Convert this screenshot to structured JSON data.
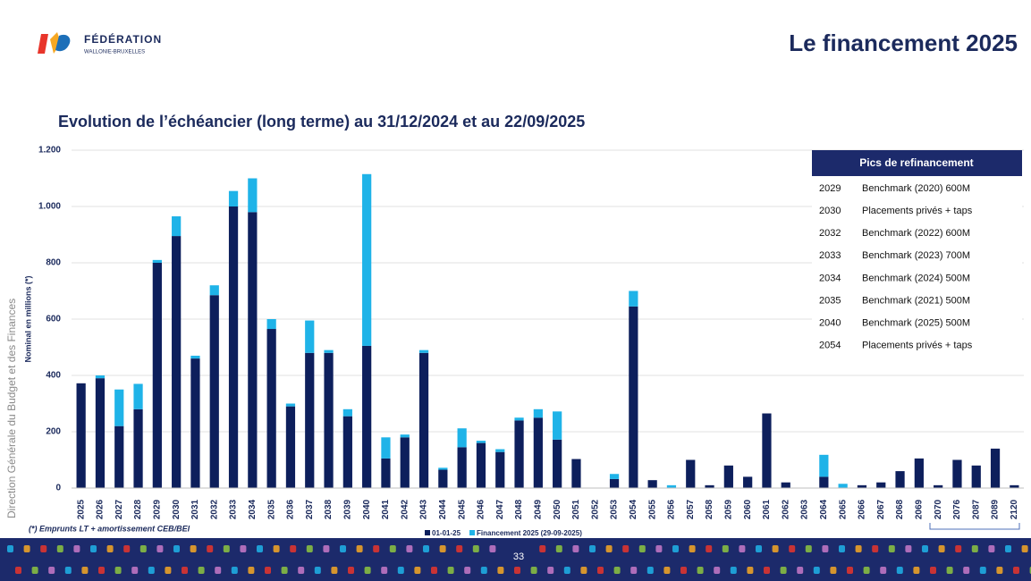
{
  "header": {
    "logo_line1": "FÉDÉRATION",
    "logo_line2": "WALLONIE-BRUXELLES",
    "title": "Le financement 2025"
  },
  "side_text": "Direction Générale du Budget et des Finances",
  "chart_data": {
    "type": "bar",
    "stacked": true,
    "title": "Evolution de l’échéancier (long terme) au 31/12/2024 et au 22/09/2025",
    "y_label": "Nominal en millions (*)",
    "categories": [
      "2025",
      "2026",
      "2027",
      "2028",
      "2029",
      "2030",
      "2031",
      "2032",
      "2033",
      "2034",
      "2035",
      "2036",
      "2037",
      "2038",
      "2039",
      "2040",
      "2041",
      "2042",
      "2043",
      "2044",
      "2045",
      "2046",
      "2047",
      "2048",
      "2049",
      "2050",
      "2051",
      "2052",
      "2053",
      "2054",
      "2055",
      "2056",
      "2057",
      "2058",
      "2059",
      "2060",
      "2061",
      "2062",
      "2063",
      "2064",
      "2065",
      "2066",
      "2067",
      "2068",
      "2069",
      "2070",
      "2076",
      "2087",
      "2089",
      "2120"
    ],
    "series": [
      {
        "name": "01-01-25",
        "color": "#0d1f5c",
        "values": [
          372,
          390,
          220,
          280,
          800,
          895,
          460,
          685,
          1000,
          980,
          565,
          290,
          480,
          480,
          255,
          505,
          105,
          180,
          480,
          65,
          145,
          160,
          128,
          240,
          250,
          172,
          103,
          0,
          32,
          645,
          28,
          0,
          100,
          10,
          80,
          40,
          265,
          20,
          0,
          40,
          0,
          10,
          20,
          60,
          105,
          10,
          100,
          80,
          140,
          10
        ]
      },
      {
        "name": "Financement 2025 (29-09-2025)",
        "color": "#1fb3e8",
        "values": [
          0,
          10,
          130,
          90,
          10,
          70,
          10,
          35,
          55,
          120,
          35,
          10,
          115,
          10,
          25,
          610,
          75,
          10,
          10,
          7,
          67,
          8,
          10,
          10,
          30,
          100,
          0,
          0,
          18,
          55,
          0,
          10,
          0,
          0,
          0,
          0,
          0,
          0,
          0,
          78,
          15,
          0,
          0,
          0,
          0,
          0,
          0,
          0,
          0,
          0
        ]
      }
    ],
    "ylim": [
      0,
      1200
    ],
    "yticks": [
      0,
      200,
      400,
      600,
      800,
      {
        "value": 1000,
        "label": "1.000"
      },
      {
        "value": 1200,
        "label": "1.200"
      }
    ],
    "grid": true,
    "footnote": "(*) Emprunts LT +  amortissement CEB/BEI"
  },
  "table": {
    "header": "Pics de refinancement",
    "rows": [
      [
        "2029",
        "Benchmark (2020) 600M"
      ],
      [
        "2030",
        "Placements privés + taps"
      ],
      [
        "2032",
        "Benchmark (2022) 600M"
      ],
      [
        "2033",
        "Benchmark (2023) 700M"
      ],
      [
        "2034",
        "Benchmark (2024) 500M"
      ],
      [
        "2035",
        "Benchmark (2021) 500M"
      ],
      [
        "2040",
        "Benchmark (2025) 500M"
      ],
      [
        "2054",
        "Placements privés + taps"
      ]
    ]
  },
  "page_number": "33"
}
